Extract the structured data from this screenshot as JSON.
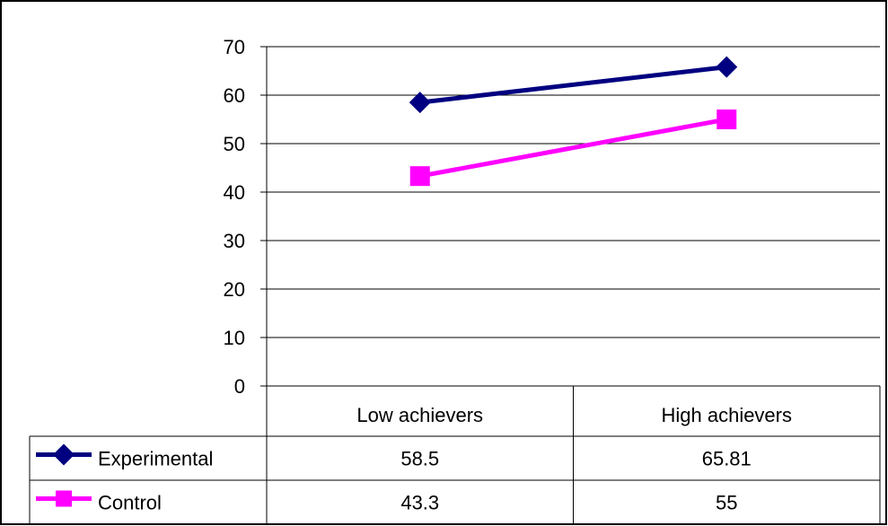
{
  "chart_data": {
    "type": "line",
    "categories": [
      "Low achievers",
      "High achievers"
    ],
    "series": [
      {
        "name": "Experimental",
        "values": [
          58.5,
          65.81
        ],
        "color": "#000080",
        "marker": "diamond"
      },
      {
        "name": "Control",
        "values": [
          43.3,
          55
        ],
        "color": "#ff00ff",
        "marker": "square"
      }
    ],
    "ylim": [
      0,
      70
    ],
    "yticks": [
      0,
      10,
      20,
      30,
      40,
      50,
      60,
      70
    ],
    "grid": true,
    "legend": "data-table",
    "table": {
      "rows": [
        {
          "name": "Experimental",
          "cells": [
            "58.5",
            "65.81"
          ]
        },
        {
          "name": "Control",
          "cells": [
            "43.3",
            "55"
          ]
        }
      ]
    }
  }
}
